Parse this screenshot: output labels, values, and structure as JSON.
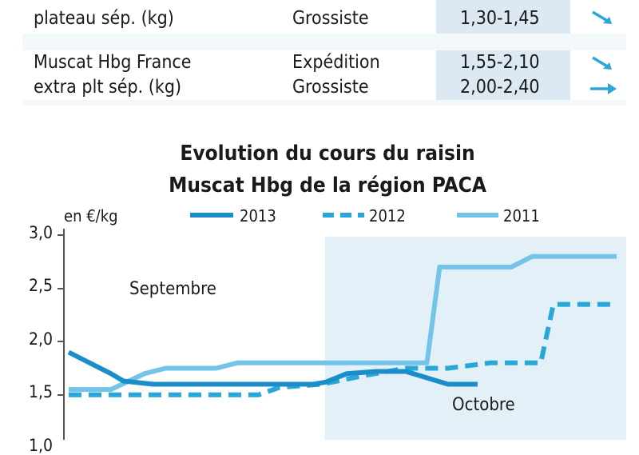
{
  "colors": {
    "s2013": "#1b8dc9",
    "s2012": "#2aa7d9",
    "s2011": "#74c4ea",
    "october_bg": "#e3f0f8",
    "price_bg": "#dde9f2"
  },
  "table": {
    "rows": [
      {
        "product_line1": "",
        "product_line2": "plateau sép. (kg)",
        "stage1": "",
        "stage2": "Grossiste",
        "price1": "",
        "price2": "1,30-1,45",
        "trend1": "",
        "trend2": "down-icon"
      },
      {
        "product_line1": "Muscat Hbg France",
        "product_line2": "extra plt sép. (kg)",
        "stage1": "Expédition",
        "stage2": "Grossiste",
        "price1": "1,55-2,10",
        "price2": "2,00-2,40",
        "trend1": "down-icon",
        "trend2": "right-icon"
      }
    ]
  },
  "chart_data": {
    "type": "line",
    "title": "Evolution du cours du raisin Muscat Hbg de la région PACA",
    "title_lines": [
      "Evolution du cours du raisin",
      "Muscat Hbg de la région PACA"
    ],
    "ylabel": "en €/kg",
    "ylim": [
      1.0,
      3.0
    ],
    "yticks": [
      "3,0",
      "2,5",
      "2,0",
      "1,5",
      "1,0"
    ],
    "ytick_values": [
      3.0,
      2.5,
      2.0,
      1.5,
      1.0
    ],
    "xlim": [
      0,
      13
    ],
    "october_start": 6.08,
    "month_labels": [
      "Septembre",
      "Octobre"
    ],
    "legend": [
      "2013",
      "2012",
      "2011"
    ],
    "legend_position": "top",
    "series": [
      {
        "name": "2013",
        "style": "solid",
        "x": [
          0,
          1,
          1.3,
          2.0,
          3.0,
          4.0,
          5.0,
          5.4,
          5.8,
          6.1,
          6.6,
          7.3,
          8.0,
          9.0,
          9.7
        ],
        "y": [
          1.9,
          1.7,
          1.63,
          1.6,
          1.6,
          1.6,
          1.6,
          1.6,
          1.6,
          1.62,
          1.7,
          1.72,
          1.72,
          1.6,
          1.6
        ]
      },
      {
        "name": "2012",
        "style": "dashed",
        "x": [
          0,
          3.5,
          4.5,
          5.0,
          6.0,
          7.0,
          8.0,
          9.0,
          10.0,
          11.0,
          11.2,
          11.5,
          12.0,
          13.0
        ],
        "y": [
          1.5,
          1.5,
          1.5,
          1.57,
          1.6,
          1.68,
          1.75,
          1.75,
          1.8,
          1.8,
          1.8,
          2.35,
          2.35,
          2.35
        ]
      },
      {
        "name": "2011",
        "style": "solid",
        "x": [
          0,
          1.0,
          1.8,
          2.3,
          3.5,
          4.0,
          8.0,
          8.5,
          8.8,
          9.0,
          10.0,
          10.5,
          11.0,
          11.5,
          13.0
        ],
        "y": [
          1.55,
          1.55,
          1.7,
          1.75,
          1.75,
          1.8,
          1.8,
          1.8,
          2.7,
          2.7,
          2.7,
          2.7,
          2.8,
          2.8,
          2.8
        ]
      }
    ]
  }
}
